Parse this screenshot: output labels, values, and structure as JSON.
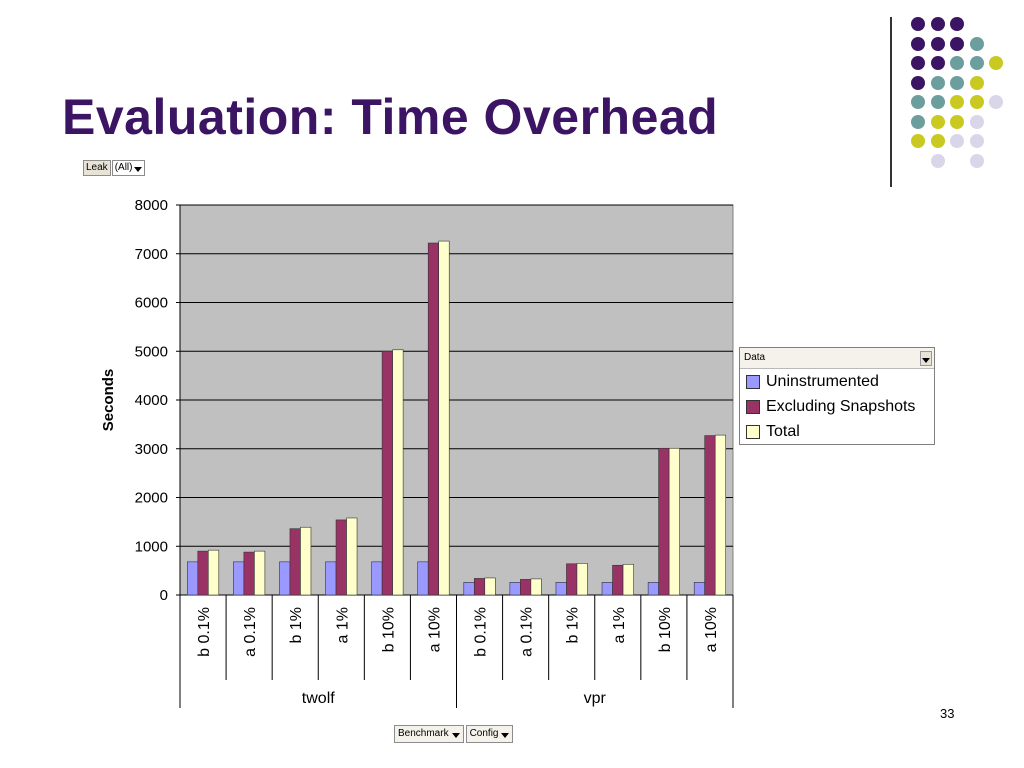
{
  "slide": {
    "title": "Evaluation: Time Overhead",
    "page_number": "33"
  },
  "filter": {
    "label": "Leak",
    "value": "(All)"
  },
  "legend": {
    "header": "Data"
  },
  "bottom_buttons": {
    "benchmark": "Benchmark",
    "config": "Config"
  },
  "colors": {
    "plot_bg": "#c0c0c0",
    "title": "#3b1464",
    "dots": {
      "purple": "#3b1464",
      "teal": "#6d9e9e",
      "olive": "#c9c921",
      "lavender": "#d9d6ea"
    }
  },
  "chart_data": {
    "type": "bar",
    "ylabel": "Seconds",
    "ylim": [
      0,
      8000
    ],
    "yticks": [
      0,
      1000,
      2000,
      3000,
      4000,
      5000,
      6000,
      7000,
      8000
    ],
    "grid": true,
    "legend_position": "right",
    "groups": [
      {
        "name": "twolf",
        "categories": [
          "b 0.1%",
          "a 0.1%",
          "b 1%",
          "a 1%",
          "b 10%",
          "a 10%"
        ]
      },
      {
        "name": "vpr",
        "categories": [
          "b 0.1%",
          "a 0.1%",
          "b 1%",
          "a 1%",
          "b 10%",
          "a 10%"
        ]
      }
    ],
    "series": [
      {
        "name": "Uninstrumented",
        "color": "#9999ff",
        "values": [
          680,
          680,
          680,
          680,
          680,
          680,
          260,
          260,
          260,
          260,
          260,
          260
        ]
      },
      {
        "name": "Excluding Snapshots",
        "color": "#993366",
        "values": [
          900,
          880,
          1360,
          1540,
          5000,
          7220,
          340,
          320,
          640,
          610,
          3010,
          3270
        ]
      },
      {
        "name": "Total",
        "color": "#ffffcc",
        "values": [
          920,
          900,
          1390,
          1580,
          5030,
          7260,
          350,
          330,
          650,
          630,
          3010,
          3280
        ]
      }
    ]
  }
}
